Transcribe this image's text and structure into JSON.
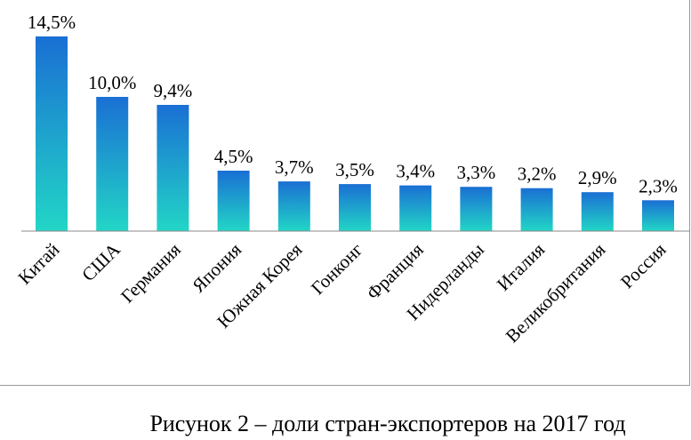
{
  "chart_data": {
    "type": "bar",
    "title": "",
    "xlabel": "",
    "ylabel": "",
    "ylim": [
      0,
      15
    ],
    "grid": false,
    "legend": "none",
    "categories": [
      "Китай",
      "США",
      "Германия",
      "Япония",
      "Южная Корея",
      "Гонконг",
      "Франция",
      "Нидерланды",
      "Италия",
      "Великобритания",
      "Россия"
    ],
    "values": [
      14.5,
      10.0,
      9.4,
      4.5,
      3.7,
      3.5,
      3.4,
      3.3,
      3.2,
      2.9,
      2.3
    ],
    "labels": [
      "14,5%",
      "10,0%",
      "9,4%",
      "4,5%",
      "3,7%",
      "3,5%",
      "3,4%",
      "3,3%",
      "3,2%",
      "2,9%",
      "2,3%"
    ]
  },
  "caption": "Рисунок 2 – доли стран-экспортеров на 2017 год",
  "colors": {
    "bar_top": "#1a6fd4",
    "bar_bottom": "#22d6c6",
    "axis": "#8a8a8a"
  }
}
